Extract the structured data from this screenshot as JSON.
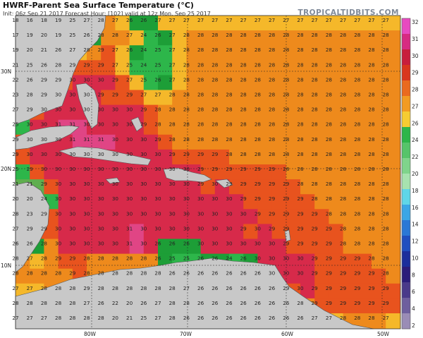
{
  "header": {
    "title": "HWRF-Parent Sea Surface Temperature (°C)",
    "subtitle": "Init: 06z Sep 21 2017   Forecast Hour: [102]   valid at 12z Mon, Sep 25 2017",
    "brand": "TROPICALTIDBITS.COM"
  },
  "axes": {
    "lat_labels": [
      "30N",
      "20N",
      "10N"
    ],
    "lon_labels": [
      "80W",
      "70W",
      "60W",
      "50W"
    ]
  },
  "colorbar": {
    "labels": [
      "32",
      "31",
      "30",
      "29",
      "28",
      "27",
      "26",
      "24",
      "22",
      "20",
      "18",
      "16",
      "14",
      "12",
      "10",
      "8",
      "6",
      "4",
      "2"
    ]
  },
  "grid_values": [
    [
      18,
      16,
      18,
      19,
      25,
      27,
      28,
      27,
      26,
      26,
      27,
      27,
      27,
      27,
      27,
      27,
      27,
      27,
      27,
      27,
      27,
      27,
      27,
      27,
      27,
      27,
      27
    ],
    [
      17,
      19,
      20,
      19,
      25,
      26,
      28,
      28,
      27,
      24,
      26,
      27,
      28,
      28,
      28,
      28,
      28,
      28,
      28,
      28,
      28,
      28,
      28,
      28,
      28,
      28,
      28
    ],
    [
      19,
      20,
      21,
      26,
      27,
      28,
      29,
      27,
      26,
      24,
      25,
      27,
      28,
      28,
      28,
      28,
      28,
      28,
      28,
      28,
      28,
      28,
      28,
      28,
      28,
      28,
      28
    ],
    [
      21,
      25,
      26,
      28,
      29,
      29,
      29,
      27,
      25,
      24,
      25,
      27,
      28,
      28,
      28,
      28,
      28,
      28,
      28,
      28,
      28,
      28,
      28,
      28,
      28,
      28,
      28
    ],
    [
      22,
      26,
      29,
      29,
      30,
      30,
      30,
      29,
      27,
      25,
      26,
      27,
      28,
      28,
      28,
      28,
      28,
      28,
      28,
      28,
      28,
      28,
      28,
      28,
      28,
      28,
      28
    ],
    [
      23,
      28,
      29,
      30,
      30,
      30,
      29,
      29,
      29,
      27,
      27,
      28,
      28,
      28,
      28,
      28,
      28,
      28,
      28,
      28,
      28,
      28,
      28,
      28,
      28,
      28,
      28
    ],
    [
      27,
      29,
      30,
      30,
      30,
      30,
      30,
      30,
      30,
      29,
      28,
      28,
      28,
      28,
      28,
      28,
      28,
      28,
      28,
      28,
      28,
      28,
      28,
      28,
      28,
      28,
      28
    ],
    [
      25,
      30,
      30,
      31,
      31,
      30,
      30,
      30,
      30,
      29,
      28,
      28,
      28,
      28,
      28,
      28,
      28,
      28,
      28,
      28,
      28,
      28,
      28,
      28,
      28,
      28,
      28
    ],
    [
      29,
      30,
      30,
      30,
      31,
      31,
      31,
      30,
      30,
      30,
      29,
      28,
      28,
      28,
      28,
      28,
      28,
      28,
      28,
      28,
      28,
      28,
      28,
      28,
      28,
      28,
      28
    ],
    [
      29,
      30,
      30,
      30,
      30,
      30,
      30,
      30,
      30,
      30,
      30,
      29,
      29,
      29,
      29,
      28,
      28,
      28,
      28,
      28,
      28,
      28,
      28,
      28,
      28,
      28,
      28
    ],
    [
      25,
      29,
      30,
      30,
      30,
      30,
      30,
      30,
      30,
      30,
      30,
      30,
      30,
      29,
      29,
      29,
      29,
      29,
      29,
      28,
      28,
      28,
      28,
      28,
      28,
      28,
      28
    ],
    [
      21,
      21,
      29,
      30,
      30,
      30,
      30,
      30,
      30,
      30,
      30,
      30,
      30,
      29,
      30,
      29,
      29,
      29,
      29,
      29,
      28,
      28,
      28,
      28,
      28,
      28,
      28
    ],
    [
      20,
      20,
      24,
      30,
      30,
      30,
      30,
      30,
      30,
      30,
      30,
      30,
      30,
      30,
      30,
      30,
      29,
      29,
      29,
      29,
      29,
      28,
      28,
      28,
      28,
      28,
      28
    ],
    [
      28,
      23,
      29,
      30,
      30,
      30,
      30,
      30,
      30,
      30,
      30,
      30,
      30,
      30,
      30,
      30,
      30,
      29,
      29,
      29,
      29,
      29,
      28,
      28,
      28,
      28,
      28
    ],
    [
      27,
      29,
      29,
      30,
      30,
      30,
      30,
      30,
      31,
      30,
      30,
      30,
      30,
      30,
      30,
      30,
      29,
      30,
      29,
      29,
      29,
      29,
      29,
      28,
      28,
      28,
      28
    ],
    [
      26,
      26,
      28,
      30,
      30,
      30,
      30,
      30,
      31,
      30,
      26,
      26,
      26,
      30,
      30,
      30,
      30,
      30,
      30,
      29,
      29,
      29,
      29,
      28,
      28,
      28,
      28
    ],
    [
      28,
      27,
      28,
      29,
      29,
      28,
      28,
      28,
      28,
      28,
      26,
      25,
      25,
      26,
      26,
      24,
      26,
      30,
      30,
      30,
      30,
      29,
      29,
      29,
      29,
      28,
      28
    ],
    [
      28,
      28,
      28,
      28,
      29,
      28,
      28,
      28,
      28,
      28,
      28,
      26,
      26,
      26,
      26,
      26,
      26,
      26,
      30,
      30,
      30,
      29,
      29,
      29,
      29,
      29,
      28
    ],
    [
      27,
      27,
      28,
      28,
      28,
      29,
      28,
      28,
      28,
      28,
      28,
      28,
      27,
      26,
      26,
      26,
      26,
      26,
      26,
      29,
      30,
      29,
      29,
      29,
      29,
      29,
      29
    ],
    [
      28,
      28,
      28,
      28,
      28,
      27,
      26,
      22,
      20,
      26,
      27,
      28,
      28,
      26,
      26,
      26,
      26,
      26,
      26,
      26,
      28,
      29,
      29,
      29,
      29,
      29,
      29
    ],
    [
      27,
      27,
      27,
      28,
      28,
      28,
      28,
      20,
      21,
      25,
      27,
      28,
      26,
      26,
      26,
      26,
      26,
      26,
      26,
      26,
      26,
      27,
      27,
      28,
      28,
      28,
      27
    ]
  ],
  "colors": {
    "land": "#c8c8c8",
    "sst_24": "#2db64a",
    "sst_26": "#1d9e37",
    "sst_27": "#f5b82a",
    "sst_28": "#ee8a1c",
    "sst_29": "#e8531e",
    "sst_30": "#d72a4a",
    "sst_31": "#e04585"
  }
}
